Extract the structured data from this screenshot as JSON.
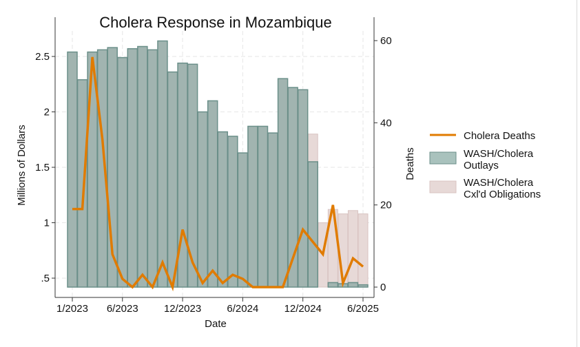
{
  "chart_data": {
    "type": "bar+line",
    "title": "Cholera Response in Mozambique",
    "xlabel": "Date",
    "ylabel_left": "Millions of Dollars",
    "ylabel_right": "Deaths",
    "x_ticks": [
      "1/2023",
      "6/2023",
      "12/2023",
      "6/2024",
      "12/2024",
      "6/2025"
    ],
    "y_left_ticks": [
      ".5",
      "1",
      "1.5",
      "2",
      "2.5"
    ],
    "y_left_tick_values": [
      0.5,
      1,
      1.5,
      2,
      2.5
    ],
    "y_right_ticks": [
      "0",
      "20",
      "40",
      "60"
    ],
    "y_right_tick_values": [
      0,
      20,
      40,
      60
    ],
    "ylim_right": [
      0,
      60
    ],
    "grid": true,
    "legend_position": "right",
    "months": [
      "2023-01",
      "2023-02",
      "2023-03",
      "2023-04",
      "2023-05",
      "2023-06",
      "2023-07",
      "2023-08",
      "2023-09",
      "2023-10",
      "2023-11",
      "2023-12",
      "2024-01",
      "2024-02",
      "2024-03",
      "2024-04",
      "2024-05",
      "2024-06",
      "2024-07",
      "2024-08",
      "2024-09",
      "2024-10",
      "2024-11",
      "2024-12",
      "2025-01",
      "2025-02",
      "2025-03",
      "2025-04",
      "2025-05",
      "2025-06"
    ],
    "series": [
      {
        "name": "Cholera Deaths",
        "type": "line",
        "axis": "right",
        "color": "#e07b00",
        "values": [
          19,
          19,
          56,
          36,
          8,
          2,
          0,
          3,
          0,
          6,
          0,
          14,
          6,
          1,
          4,
          1,
          3,
          2,
          0,
          0,
          0,
          0,
          7,
          14,
          11,
          8,
          20,
          1,
          7,
          5
        ]
      },
      {
        "name": "WASH/Cholera Outlays",
        "type": "bar",
        "axis": "left",
        "color": "#9fb4b0",
        "stroke": "#6a8f89",
        "values": [
          2.54,
          2.29,
          2.54,
          2.56,
          2.58,
          2.49,
          2.57,
          2.59,
          2.56,
          2.64,
          2.36,
          2.44,
          2.43,
          2.0,
          2.1,
          1.82,
          1.78,
          1.63,
          1.87,
          1.87,
          1.81,
          2.3,
          2.22,
          2.2,
          1.55,
          null,
          0.46,
          0.45,
          0.46,
          0.44
        ]
      },
      {
        "name": "WASH/Cholera Cxl'd Obligations",
        "type": "bar",
        "axis": "left",
        "color": "#e7d9d7",
        "stroke": "#d8c3c1",
        "values": [
          null,
          null,
          null,
          null,
          null,
          null,
          null,
          null,
          null,
          null,
          null,
          null,
          null,
          null,
          null,
          null,
          null,
          null,
          null,
          null,
          null,
          null,
          null,
          null,
          1.8,
          1.0,
          1.12,
          1.08,
          1.11,
          1.08
        ]
      }
    ],
    "legend": [
      {
        "line1": "Cholera Deaths",
        "line2": ""
      },
      {
        "line1": "WASH/Cholera",
        "line2": "Outlays"
      },
      {
        "line1": "WASH/Cholera",
        "line2": "Cxl'd Obligations"
      }
    ]
  }
}
